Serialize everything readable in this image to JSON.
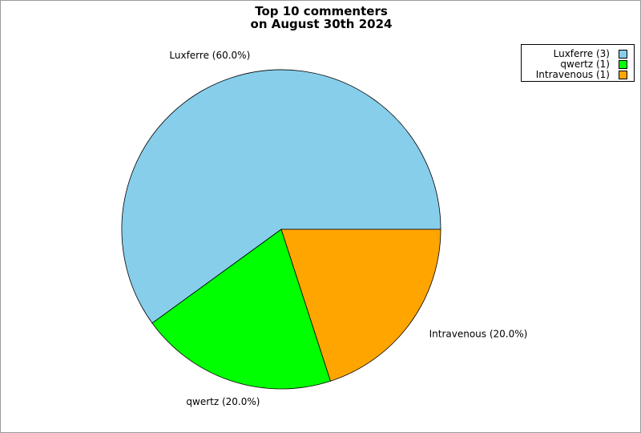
{
  "chart_data": {
    "type": "pie",
    "title_lines": [
      "Top 10 commenters",
      "on August 30th 2024"
    ],
    "slices": [
      {
        "label": "Luxferre (60.0%)",
        "legend": "Luxferre (3)",
        "value": 3,
        "percent": 60.0,
        "color": "#87ceeb"
      },
      {
        "label": "qwertz (20.0%)",
        "legend": "qwertz (1)",
        "value": 1,
        "percent": 20.0,
        "color": "#00ff00"
      },
      {
        "label": "Intravenous (20.0%)",
        "legend": "Intravenous (1)",
        "value": 1,
        "percent": 20.0,
        "color": "#ffa500"
      }
    ],
    "legend_position": "top-right"
  }
}
